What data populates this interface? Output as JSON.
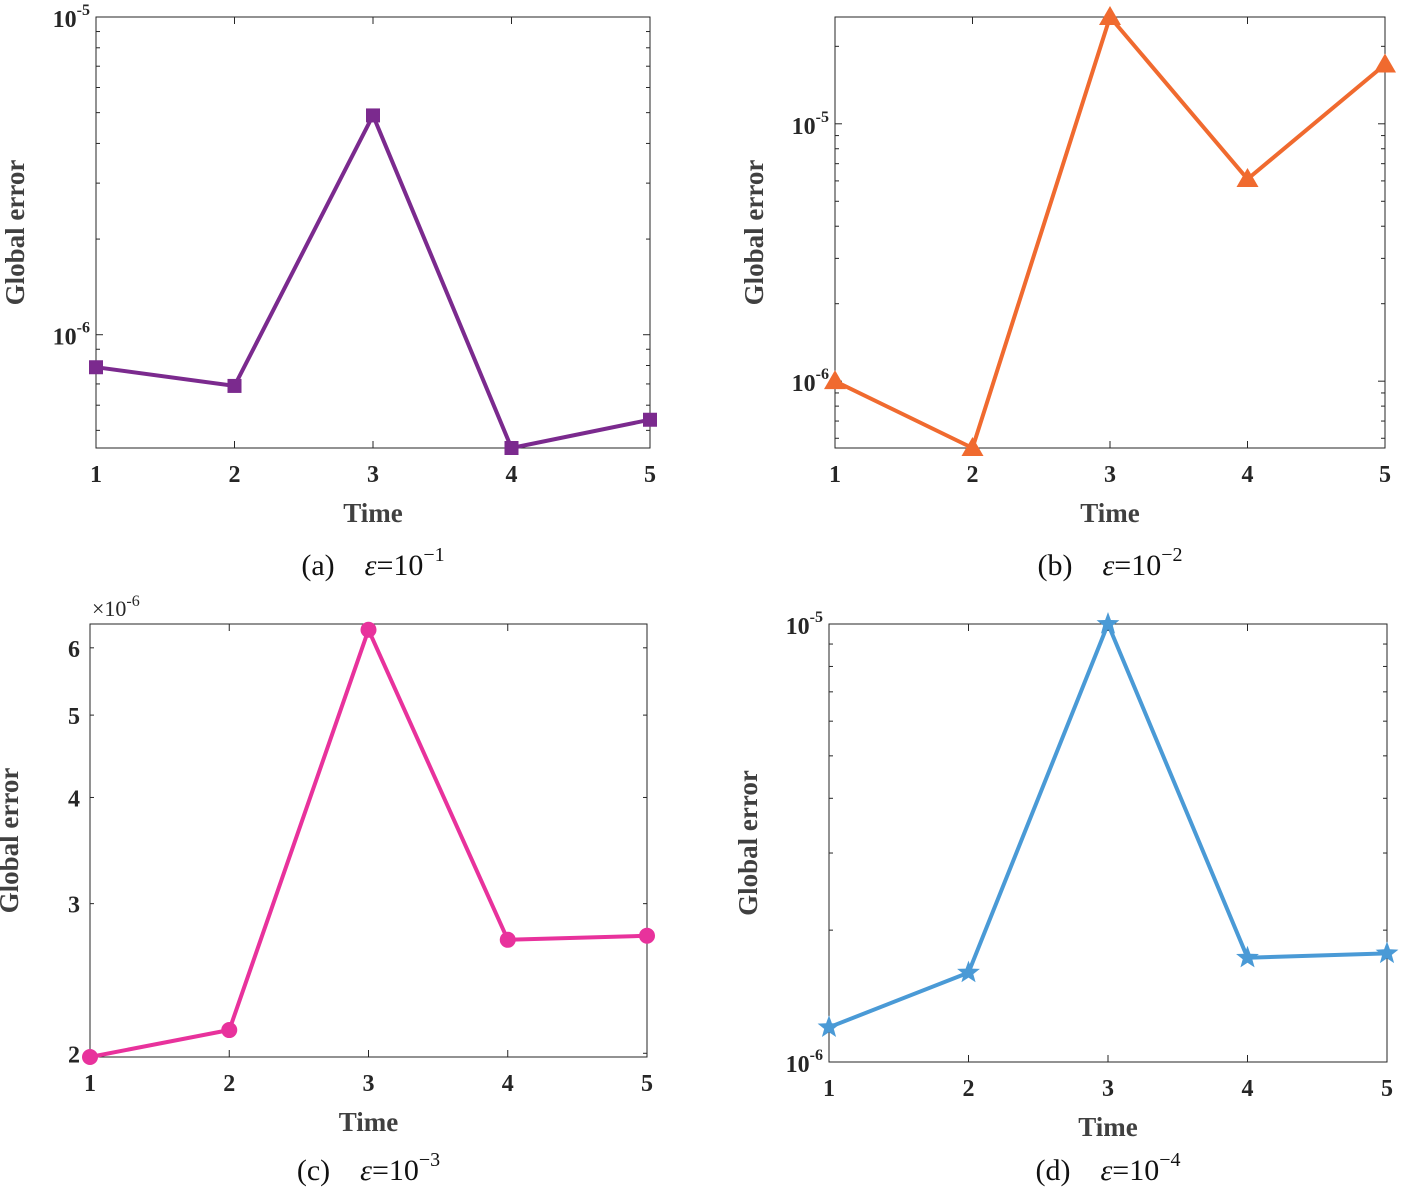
{
  "chart_data": [
    {
      "type": "line",
      "yscale": "log",
      "x": [
        1,
        2,
        3,
        4,
        5
      ],
      "values": [
        7.9e-07,
        6.9e-07,
        4.9e-06,
        4.4e-07,
        5.4e-07
      ],
      "xlim": [
        1,
        5
      ],
      "ylim": [
        4.4e-07,
        1e-05
      ],
      "xticks": [
        "1",
        "2",
        "3",
        "4",
        "5"
      ],
      "yticks": [
        {
          "value": 1e-06,
          "base": "10",
          "exp": "-6"
        },
        {
          "value": 1e-05,
          "base": "10",
          "exp": "-5"
        }
      ],
      "xlabel": "Time",
      "ylabel": "Global error",
      "color": "#7b2a8e",
      "marker": "square",
      "caption": {
        "label": "(a)",
        "eq": "=10",
        "exp": "−1"
      }
    },
    {
      "type": "line",
      "yscale": "log",
      "x": [
        1,
        2,
        3,
        4,
        5
      ],
      "values": [
        1e-06,
        5.5e-07,
        2.6e-05,
        6.1e-06,
        1.7e-05
      ],
      "xlim": [
        1,
        5
      ],
      "ylim": [
        5.5e-07,
        2.6e-05
      ],
      "xticks": [
        "1",
        "2",
        "3",
        "4",
        "5"
      ],
      "yticks": [
        {
          "value": 1e-06,
          "base": "10",
          "exp": "-6"
        },
        {
          "value": 1e-05,
          "base": "10",
          "exp": "-5"
        }
      ],
      "xlabel": "Time",
      "ylabel": "Global error",
      "color": "#f06a2f",
      "marker": "triangle",
      "caption": {
        "label": "(b)",
        "eq": "=10",
        "exp": "−2"
      }
    },
    {
      "type": "line",
      "yscale": "log",
      "x": [
        1,
        2,
        3,
        4,
        5
      ],
      "values": [
        1.98e-06,
        2.13e-06,
        6.3e-06,
        2.72e-06,
        2.75e-06
      ],
      "xlim": [
        1,
        5
      ],
      "ylim": [
        1.98e-06,
        6.4e-06
      ],
      "xticks": [
        "1",
        "2",
        "3",
        "4",
        "5"
      ],
      "yticks": [
        {
          "value": 2e-06,
          "label": "2"
        },
        {
          "value": 3e-06,
          "label": "3"
        },
        {
          "value": 4e-06,
          "label": "4"
        },
        {
          "value": 5e-06,
          "label": "5"
        },
        {
          "value": 6e-06,
          "label": "6"
        }
      ],
      "multiplier": {
        "text": "×10",
        "exp": "-6"
      },
      "xlabel": "Time",
      "ylabel": "Global error",
      "color": "#e8329c",
      "marker": "circle",
      "caption": {
        "label": "(c)",
        "eq": "=10",
        "exp": "−3"
      }
    },
    {
      "type": "line",
      "yscale": "log",
      "x": [
        1,
        2,
        3,
        4,
        5
      ],
      "values": [
        1.2e-06,
        1.6e-06,
        1e-05,
        1.73e-06,
        1.77e-06
      ],
      "xlim": [
        1,
        5
      ],
      "ylim": [
        1e-06,
        1e-05
      ],
      "xticks": [
        "1",
        "2",
        "3",
        "4",
        "5"
      ],
      "yticks": [
        {
          "value": 1e-06,
          "base": "10",
          "exp": "-6"
        },
        {
          "value": 1e-05,
          "base": "10",
          "exp": "-5"
        }
      ],
      "xlabel": "Time",
      "ylabel": "Global error",
      "color": "#4a9ad6",
      "marker": "star",
      "caption": {
        "label": "(d)",
        "eq": "=10",
        "exp": "−4"
      }
    }
  ]
}
